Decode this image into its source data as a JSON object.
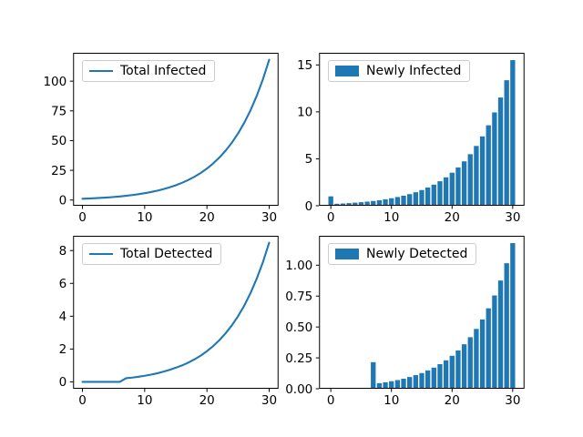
{
  "figure": {
    "background": "#ffffff",
    "series_color": "#1f77b4",
    "axis_color": "#000000",
    "legend_border_color": "#cccccc"
  },
  "chart_data": [
    {
      "id": "total-infected",
      "type": "line",
      "legend": "Total Infected",
      "legend_loc": "upper left",
      "grid": false,
      "x": [
        0,
        1,
        2,
        3,
        4,
        5,
        6,
        7,
        8,
        9,
        10,
        11,
        12,
        13,
        14,
        15,
        16,
        17,
        18,
        19,
        20,
        21,
        22,
        23,
        24,
        25,
        26,
        27,
        28,
        29,
        30
      ],
      "values": [
        1.05,
        1.27,
        1.53,
        1.82,
        2.17,
        2.57,
        3.03,
        3.57,
        4.19,
        4.91,
        5.75,
        6.73,
        7.85,
        9.16,
        10.68,
        12.44,
        14.49,
        16.86,
        19.61,
        22.8,
        26.5,
        30.79,
        35.77,
        41.54,
        48.24,
        56.01,
        65.03,
        75.48,
        87.61,
        101.68,
        118.0
      ],
      "xlim": [
        -1.5,
        31.5
      ],
      "ylim": [
        -4.8,
        123.85
      ],
      "xticks": [
        0,
        10,
        20,
        30
      ],
      "xtick_labels": [
        "0",
        "10",
        "20",
        "30"
      ],
      "yticks": [
        0,
        25,
        50,
        75,
        100
      ],
      "ytick_labels": [
        "0",
        "25",
        "50",
        "75",
        "100"
      ]
    },
    {
      "id": "newly-infected",
      "type": "bar",
      "legend": "Newly Infected",
      "legend_loc": "upper left",
      "grid": false,
      "bar_width": 0.8,
      "x": [
        0,
        1,
        2,
        3,
        4,
        5,
        6,
        7,
        8,
        9,
        10,
        11,
        12,
        13,
        14,
        15,
        16,
        17,
        18,
        19,
        20,
        21,
        22,
        23,
        24,
        25,
        26,
        27,
        28,
        29,
        30
      ],
      "values": [
        1.0,
        0.21,
        0.24,
        0.28,
        0.33,
        0.38,
        0.44,
        0.51,
        0.59,
        0.69,
        0.8,
        0.93,
        1.07,
        1.24,
        1.44,
        1.67,
        1.94,
        2.25,
        2.61,
        3.03,
        3.52,
        4.08,
        4.73,
        5.49,
        6.37,
        7.39,
        8.57,
        9.94,
        11.53,
        13.37,
        15.51
      ],
      "xlim": [
        -1.94,
        31.94
      ],
      "ylim": [
        0,
        16.29
      ],
      "xticks": [
        0,
        10,
        20,
        30
      ],
      "xtick_labels": [
        "0",
        "10",
        "20",
        "30"
      ],
      "yticks": [
        0,
        5,
        10,
        15
      ],
      "ytick_labels": [
        "0",
        "5",
        "10",
        "15"
      ]
    },
    {
      "id": "total-detected",
      "type": "line",
      "legend": "Total Detected",
      "legend_loc": "upper left",
      "grid": false,
      "x": [
        0,
        1,
        2,
        3,
        4,
        5,
        6,
        7,
        8,
        9,
        10,
        11,
        12,
        13,
        14,
        15,
        16,
        17,
        18,
        19,
        20,
        21,
        22,
        23,
        24,
        25,
        26,
        27,
        28,
        29,
        30
      ],
      "values": [
        0,
        0,
        0,
        0,
        0,
        0,
        0,
        0.22,
        0.26,
        0.31,
        0.37,
        0.44,
        0.52,
        0.62,
        0.73,
        0.86,
        1.0,
        1.17,
        1.37,
        1.6,
        1.87,
        2.18,
        2.54,
        2.96,
        3.44,
        4.0,
        4.65,
        5.41,
        6.29,
        7.3,
        8.48
      ],
      "xlim": [
        -1.5,
        31.5
      ],
      "ylim": [
        -0.42,
        8.9
      ],
      "xticks": [
        0,
        10,
        20,
        30
      ],
      "xtick_labels": [
        "0",
        "10",
        "20",
        "30"
      ],
      "yticks": [
        0,
        2,
        4,
        6,
        8
      ],
      "ytick_labels": [
        "0",
        "2",
        "4",
        "6",
        "8"
      ]
    },
    {
      "id": "newly-detected",
      "type": "bar",
      "legend": "Newly Detected",
      "legend_loc": "upper left",
      "grid": false,
      "bar_width": 0.8,
      "x": [
        0,
        1,
        2,
        3,
        4,
        5,
        6,
        7,
        8,
        9,
        10,
        11,
        12,
        13,
        14,
        15,
        16,
        17,
        18,
        19,
        20,
        21,
        22,
        23,
        24,
        25,
        26,
        27,
        28,
        29,
        30
      ],
      "values": [
        0,
        0,
        0,
        0,
        0,
        0,
        0,
        0.215,
        0.045,
        0.052,
        0.061,
        0.07,
        0.081,
        0.095,
        0.11,
        0.127,
        0.148,
        0.171,
        0.199,
        0.23,
        0.267,
        0.31,
        0.36,
        0.417,
        0.484,
        0.561,
        0.651,
        0.755,
        0.876,
        1.016,
        1.179
      ],
      "xlim": [
        -1.94,
        31.94
      ],
      "ylim": [
        0,
        1.238
      ],
      "xticks": [
        0,
        10,
        20,
        30
      ],
      "xtick_labels": [
        "0",
        "10",
        "20",
        "30"
      ],
      "yticks": [
        0,
        0.25,
        0.5,
        0.75,
        1.0
      ],
      "ytick_labels": [
        "0.00",
        "0.25",
        "0.50",
        "0.75",
        "1.00"
      ]
    }
  ]
}
